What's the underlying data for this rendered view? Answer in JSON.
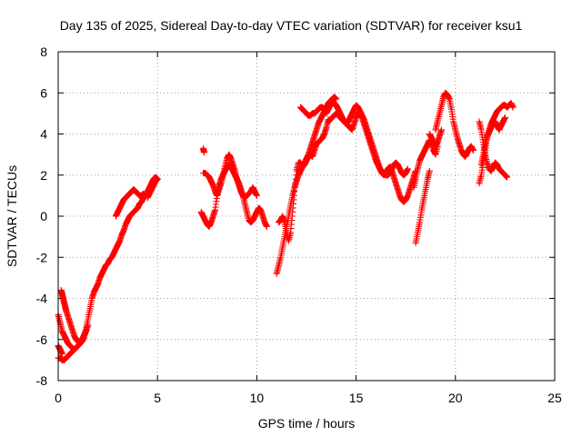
{
  "chart_data": {
    "type": "scatter",
    "title": "Day 135 of 2025, Sidereal Day-to-day VTEC variation (SDTVAR) for receiver ksu1",
    "xlabel": "GPS time / hours",
    "ylabel": "SDTVAR / TECUs",
    "xlim": [
      0,
      25
    ],
    "ylim": [
      -8,
      8
    ],
    "xticks": [
      0,
      5,
      10,
      15,
      20,
      25
    ],
    "yticks": [
      -8,
      -6,
      -4,
      -2,
      0,
      2,
      4,
      6,
      8
    ],
    "xtick_labels": [
      "0",
      "5",
      "10",
      "15",
      "20",
      "25"
    ],
    "ytick_labels": [
      "-8",
      "-6",
      "-4",
      "-2",
      "0",
      "2",
      "4",
      "6",
      "8"
    ],
    "grid": true,
    "marker": "+",
    "marker_color": "#ff0000",
    "series": [
      {
        "name": "SDTVAR",
        "segments": [
          {
            "x": [
              0.0,
              0.1,
              0.2,
              0.3,
              0.4,
              0.5,
              0.6,
              0.7,
              0.8,
              0.9,
              1.0,
              1.1,
              1.2,
              1.3,
              1.4,
              1.5,
              1.6,
              1.7,
              1.8,
              1.9,
              2.0,
              2.1,
              2.2,
              2.3,
              2.4,
              2.5,
              2.6,
              2.7,
              2.8,
              2.9,
              3.0,
              3.1,
              3.2,
              3.3,
              3.4,
              3.5,
              3.6,
              3.7,
              3.8,
              3.9,
              4.0,
              4.1,
              4.2,
              4.3,
              4.4,
              4.5,
              4.6,
              4.7,
              4.8,
              4.9,
              5.0
            ],
            "y": [
              -6.9,
              -6.9,
              -7.0,
              -7.0,
              -6.9,
              -6.8,
              -6.7,
              -6.6,
              -6.5,
              -6.4,
              -6.3,
              -6.2,
              -6.1,
              -5.9,
              -5.5,
              -5.0,
              -4.5,
              -4.0,
              -3.7,
              -3.5,
              -3.3,
              -3.0,
              -2.8,
              -2.6,
              -2.4,
              -2.3,
              -2.1,
              -2.0,
              -1.8,
              -1.6,
              -1.4,
              -1.2,
              -0.9,
              -0.7,
              -0.4,
              -0.2,
              0.0,
              0.1,
              0.2,
              0.3,
              0.4,
              0.6,
              0.7,
              0.9,
              1.0,
              1.2,
              1.4,
              1.6,
              1.8,
              1.9,
              1.8
            ]
          },
          {
            "x": [
              0.0,
              0.1,
              0.2,
              0.3,
              0.4,
              0.5,
              0.6,
              0.7,
              0.8,
              0.9,
              1.0,
              1.1,
              1.2,
              1.3,
              1.4,
              1.5
            ],
            "y": [
              -4.8,
              -5.2,
              -5.6,
              -5.8,
              -6.0,
              -6.2,
              -6.3,
              -6.4,
              -6.5,
              -6.4,
              -6.3,
              -6.2,
              -6.0,
              -5.8,
              -5.6,
              -5.3
            ]
          },
          {
            "x": [
              0.15,
              0.2,
              0.25,
              0.3,
              0.35,
              0.4,
              0.5,
              0.6,
              0.7,
              0.8,
              0.9,
              1.0,
              1.1,
              1.2,
              1.3,
              1.4
            ],
            "y": [
              -3.6,
              -3.8,
              -4.0,
              -4.2,
              -4.4,
              -4.6,
              -4.9,
              -5.2,
              -5.5,
              -5.8,
              -6.0,
              -6.1,
              -6.2,
              -6.0,
              -5.8,
              -5.6
            ]
          },
          {
            "x": [
              0.0,
              0.05,
              0.1,
              0.15,
              0.2
            ],
            "y": [
              -6.3,
              -6.4,
              -6.5,
              -6.6,
              -6.7
            ]
          },
          {
            "x": [
              2.9,
              3.0,
              3.1,
              3.2,
              3.3,
              3.4,
              3.5,
              3.6,
              3.7,
              3.8,
              3.9,
              4.0,
              4.1,
              4.2,
              4.3
            ],
            "y": [
              0.0,
              0.2,
              0.4,
              0.6,
              0.8,
              0.9,
              1.0,
              1.1,
              1.2,
              1.3,
              1.2,
              1.1,
              1.0,
              1.0,
              1.1
            ]
          },
          {
            "x": [
              4.5,
              4.6,
              4.7,
              4.8,
              4.9,
              5.0
            ],
            "y": [
              0.9,
              1.1,
              1.3,
              1.5,
              1.7,
              1.8
            ]
          },
          {
            "x": [
              7.3,
              7.35
            ],
            "y": [
              3.3,
              3.1
            ]
          },
          {
            "x": [
              7.2,
              7.3,
              7.4,
              7.5,
              7.6,
              7.7,
              7.8,
              7.9,
              8.0,
              8.1,
              8.2,
              8.3,
              8.4,
              8.5,
              8.6,
              8.7,
              8.8,
              8.9,
              9.0,
              9.1,
              9.2,
              9.3,
              9.4,
              9.5,
              9.6,
              9.7,
              9.8,
              9.9,
              10.0,
              10.1,
              10.2,
              10.3,
              10.4,
              10.5
            ],
            "y": [
              0.2,
              0.0,
              -0.2,
              -0.4,
              -0.5,
              -0.3,
              0.0,
              0.3,
              1.0,
              1.5,
              1.8,
              2.0,
              2.2,
              2.4,
              2.5,
              2.4,
              2.2,
              2.0,
              1.8,
              1.6,
              1.3,
              1.0,
              0.6,
              0.2,
              -0.2,
              -0.3,
              -0.2,
              0.0,
              0.2,
              0.4,
              0.3,
              0.0,
              -0.3,
              -0.5
            ]
          },
          {
            "x": [
              7.3,
              7.4,
              7.5,
              7.6,
              7.7,
              7.8,
              7.9,
              8.0,
              8.1,
              8.2,
              8.3,
              8.4,
              8.5,
              8.6,
              8.7,
              8.8,
              8.9,
              9.0,
              9.1,
              9.2,
              9.3,
              9.4,
              9.5,
              9.6,
              9.7,
              9.8,
              9.9,
              10.0
            ],
            "y": [
              2.1,
              2.1,
              2.0,
              1.9,
              1.7,
              1.5,
              1.2,
              1.0,
              1.3,
              1.6,
              2.0,
              2.4,
              2.8,
              3.0,
              2.8,
              2.5,
              2.2,
              1.8,
              1.5,
              1.2,
              1.0,
              0.9,
              1.0,
              1.1,
              1.2,
              1.4,
              1.2,
              1.0
            ]
          },
          {
            "x": [
              11.0,
              11.1,
              11.2,
              11.3,
              11.4,
              11.5,
              11.6,
              11.7,
              11.8,
              11.9,
              12.0,
              12.1,
              12.2,
              12.3,
              12.4,
              12.5,
              12.6,
              12.7,
              12.8,
              12.9,
              13.0,
              13.1,
              13.2,
              13.3,
              13.4,
              13.5,
              13.6,
              13.7,
              13.8,
              13.9,
              14.0
            ],
            "y": [
              -2.8,
              -2.4,
              -2.0,
              -1.5,
              -1.0,
              -0.5,
              0.0,
              0.5,
              1.0,
              1.4,
              1.7,
              2.0,
              2.2,
              2.4,
              2.6,
              2.8,
              3.0,
              3.3,
              3.6,
              3.9,
              4.2,
              4.5,
              4.7,
              4.9,
              5.1,
              5.3,
              5.5,
              5.6,
              5.7,
              5.8,
              5.7
            ]
          },
          {
            "x": [
              11.1,
              11.2,
              11.3,
              11.4,
              11.5,
              11.6,
              11.7,
              11.8,
              11.9,
              12.0,
              12.1,
              12.2,
              12.3,
              12.4,
              12.5,
              12.6,
              12.7,
              12.8,
              12.9,
              13.0,
              13.1,
              13.2,
              13.3,
              13.4,
              13.5,
              13.6
            ],
            "y": [
              -0.3,
              -0.2,
              0.0,
              -0.3,
              -0.8,
              -1.2,
              -0.8,
              0.2,
              1.2,
              2.2,
              2.6,
              2.6,
              2.4,
              2.5,
              2.7,
              2.9,
              3.0,
              2.9,
              3.2,
              3.5,
              3.6,
              3.7,
              3.8,
              4.0,
              4.3,
              4.7
            ]
          },
          {
            "x": [
              12.2,
              12.3,
              12.4,
              12.5,
              12.6,
              12.7,
              12.8,
              12.9,
              13.0,
              13.1,
              13.2,
              13.3,
              13.4
            ],
            "y": [
              5.3,
              5.2,
              5.1,
              5.0,
              4.9,
              4.9,
              5.0,
              5.0,
              5.1,
              5.2,
              5.3,
              5.3,
              5.2
            ]
          },
          {
            "x": [
              13.5,
              13.6,
              13.7,
              13.8,
              13.9,
              14.0,
              14.1,
              14.2,
              14.3,
              14.4,
              14.5,
              14.6,
              14.7,
              14.8,
              14.9,
              15.0,
              15.1,
              15.2,
              15.3,
              15.4,
              15.5,
              15.6,
              15.7,
              15.8,
              15.9,
              16.0,
              16.1,
              16.2,
              16.3,
              16.4,
              16.5,
              16.6,
              16.7,
              16.8,
              16.9,
              17.0,
              17.1,
              17.2,
              17.3,
              17.4,
              17.5,
              17.6,
              17.7,
              17.8,
              17.9,
              18.0
            ],
            "y": [
              5.0,
              5.2,
              5.4,
              5.5,
              5.5,
              5.4,
              5.2,
              5.0,
              4.8,
              4.6,
              4.5,
              4.4,
              4.3,
              4.2,
              4.5,
              4.8,
              5.0,
              5.1,
              4.9,
              4.7,
              4.4,
              4.1,
              3.8,
              3.5,
              3.2,
              2.9,
              2.6,
              2.3,
              2.1,
              2.0,
              2.1,
              2.3,
              2.4,
              2.2,
              1.9,
              1.6,
              1.3,
              1.0,
              0.8,
              0.7,
              0.8,
              1.0,
              1.3,
              1.6,
              1.9,
              2.2
            ]
          },
          {
            "x": [
              13.6,
              13.7,
              13.8,
              13.9,
              14.0,
              14.1,
              14.2,
              14.3,
              14.4,
              14.5,
              14.6,
              14.7,
              14.8,
              14.9,
              15.0,
              15.1,
              15.2,
              15.3,
              15.4,
              15.5,
              15.6,
              15.7,
              15.8,
              15.9,
              16.0,
              16.1,
              16.2,
              16.3,
              16.4,
              16.5,
              16.6,
              16.7,
              16.8,
              16.9,
              17.0,
              17.1,
              17.2,
              17.3,
              17.4,
              17.5,
              17.6
            ],
            "y": [
              4.6,
              4.7,
              4.8,
              4.9,
              5.0,
              4.9,
              4.8,
              4.7,
              4.6,
              4.5,
              4.6,
              4.8,
              5.0,
              5.2,
              5.4,
              5.3,
              5.1,
              4.8,
              4.5,
              4.2,
              3.9,
              3.6,
              3.3,
              3.0,
              2.7,
              2.5,
              2.3,
              2.2,
              2.1,
              2.0,
              2.0,
              2.1,
              2.3,
              2.5,
              2.6,
              2.5,
              2.3,
              2.1,
              2.0,
              2.1,
              2.3
            ]
          },
          {
            "x": [
              18.0,
              18.1,
              18.2,
              18.3,
              18.4,
              18.5,
              18.6,
              18.7
            ],
            "y": [
              -1.3,
              -0.8,
              -0.3,
              0.3,
              0.8,
              1.3,
              1.8,
              2.2
            ]
          },
          {
            "x": [
              17.9,
              18.0,
              18.1,
              18.2,
              18.3,
              18.4,
              18.5,
              18.6,
              18.7,
              18.8,
              18.9,
              19.0,
              19.1
            ],
            "y": [
              1.4,
              1.8,
              2.3,
              2.7,
              2.9,
              3.1,
              3.3,
              3.5,
              3.7,
              3.5,
              3.2,
              3.0,
              3.4
            ]
          },
          {
            "x": [
              19.0,
              19.1,
              19.2,
              19.3,
              19.4,
              19.5,
              19.6,
              19.7,
              19.8,
              19.9,
              20.0,
              20.1,
              20.2,
              20.3,
              20.4,
              20.5,
              20.6,
              20.7,
              20.8,
              20.9
            ],
            "y": [
              4.2,
              4.6,
              5.0,
              5.4,
              5.8,
              6.0,
              5.9,
              5.7,
              5.2,
              4.6,
              4.2,
              3.8,
              3.5,
              3.2,
              3.0,
              2.9,
              3.1,
              3.3,
              3.4,
              3.2
            ]
          },
          {
            "x": [
              18.7,
              18.8,
              18.9,
              19.0,
              19.1,
              19.2,
              19.3
            ],
            "y": [
              4.0,
              3.8,
              3.6,
              3.4,
              3.6,
              3.9,
              4.2
            ]
          },
          {
            "x": [
              21.2,
              21.3,
              21.4,
              21.5,
              21.6,
              21.7,
              21.8,
              21.9,
              22.0,
              22.1,
              22.2,
              22.3,
              22.4,
              22.5,
              22.6,
              22.7,
              22.8,
              22.9
            ],
            "y": [
              1.6,
              2.0,
              2.6,
              3.2,
              3.8,
              4.2,
              4.5,
              4.7,
              4.9,
              5.1,
              5.2,
              5.3,
              5.4,
              5.4,
              5.3,
              5.4,
              5.5,
              5.3
            ]
          },
          {
            "x": [
              21.2,
              21.3,
              21.4,
              21.5,
              21.6,
              21.7,
              21.8,
              21.9,
              22.0,
              22.1,
              22.2,
              22.3,
              22.4,
              22.5,
              22.6
            ],
            "y": [
              4.6,
              4.2,
              3.6,
              3.0,
              2.6,
              2.3,
              2.2,
              2.4,
              2.6,
              2.5,
              2.3,
              2.2,
              2.1,
              2.0,
              1.9
            ]
          },
          {
            "x": [
              21.3,
              21.4,
              21.5,
              21.6,
              21.7,
              21.8,
              21.9,
              22.0,
              22.1,
              22.2,
              22.3,
              22.4,
              22.5
            ],
            "y": [
              2.5,
              3.0,
              3.5,
              3.9,
              4.1,
              4.3,
              4.5,
              4.6,
              4.4,
              4.2,
              4.4,
              4.6,
              4.8
            ]
          }
        ]
      }
    ]
  }
}
